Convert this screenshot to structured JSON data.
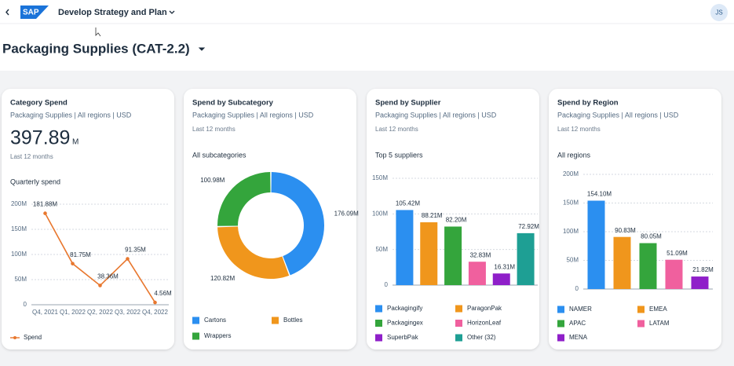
{
  "header": {
    "logo": "SAP",
    "app_title": "Develop Strategy and Plan",
    "user_initials": "JS"
  },
  "page_title": "Packaging Supplies (CAT-2.2)",
  "chart_data": [
    {
      "type": "line",
      "title": "Category Spend",
      "subtitle": "Packaging Supplies | All regions | USD",
      "kpi_value": 397.89,
      "kpi_unit": "M",
      "period": "Last 12 months",
      "chart_title": "Quarterly spend",
      "categories": [
        "Q4, 2021",
        "Q1, 2022",
        "Q2, 2022",
        "Q3, 2022",
        "Q4, 2022"
      ],
      "series": [
        {
          "name": "Spend",
          "color": "#e8772e",
          "values": [
            181.88,
            81.75,
            38.36,
            91.35,
            4.56
          ],
          "value_labels": [
            "181.88M",
            "81.75M",
            "38.36M",
            "91.35M",
            "4.56M"
          ]
        }
      ],
      "ylim": [
        0,
        200
      ],
      "yticks": [
        0,
        {
          "value": 50,
          "label": "50M"
        },
        {
          "value": 100,
          "label": "100M"
        },
        {
          "value": 150,
          "label": "150M"
        },
        {
          "value": 200,
          "label": "200M"
        }
      ],
      "grid": true
    },
    {
      "type": "donut",
      "title": "Spend by Subcategory",
      "subtitle": "Packaging Supplies | All regions | USD",
      "period": "Last 12 months",
      "chart_title": "All subcategories",
      "categories": [
        "Cartons",
        "Bottles",
        "Wrappers"
      ],
      "values": [
        176.09,
        120.82,
        100.98
      ],
      "value_labels": [
        "176.09M",
        "120.82M",
        "100.98M"
      ],
      "colors": [
        "#2b8ff0",
        "#f0961c",
        "#34a53c"
      ]
    },
    {
      "type": "bar",
      "title": "Spend by Supplier",
      "subtitle": "Packaging Supplies | All regions | USD",
      "period": "Last 12 months",
      "chart_title": "Top 5 suppliers",
      "categories": [
        "Packagingify",
        "ParagonPak",
        "Packagingex",
        "HorizonLeaf",
        "SuperbPak",
        "Other (32)"
      ],
      "values": [
        105.42,
        88.21,
        82.2,
        32.83,
        16.31,
        72.92
      ],
      "value_labels": [
        "105.42M",
        "88.21M",
        "82.20M",
        "32.83M",
        "16.31M",
        "72.92M"
      ],
      "colors": [
        "#2b8ff0",
        "#f0961c",
        "#34a53c",
        "#f0609e",
        "#8f1fc9",
        "#1e9f94"
      ],
      "ylim": [
        0,
        150
      ],
      "yticks": [
        0,
        {
          "value": 50,
          "label": "50M"
        },
        {
          "value": 100,
          "label": "100M"
        },
        {
          "value": 150,
          "label": "150M"
        }
      ],
      "grid": true
    },
    {
      "type": "bar",
      "title": "Spend by Region",
      "subtitle": "Packaging Supplies | All regions | USD",
      "period": "Last 12 months",
      "chart_title": "All regions",
      "categories": [
        "NAMER",
        "EMEA",
        "APAC",
        "LATAM",
        "MENA"
      ],
      "values": [
        154.1,
        90.83,
        80.05,
        51.09,
        21.82
      ],
      "value_labels": [
        "154.10M",
        "90.83M",
        "80.05M",
        "51.09M",
        "21.82M"
      ],
      "colors": [
        "#2b8ff0",
        "#f0961c",
        "#34a53c",
        "#f0609e",
        "#8f1fc9"
      ],
      "ylim": [
        0,
        200
      ],
      "yticks": [
        0,
        {
          "value": 50,
          "label": "50M"
        },
        {
          "value": 100,
          "label": "100M"
        },
        {
          "value": 150,
          "label": "150M"
        },
        {
          "value": 200,
          "label": "200M"
        }
      ],
      "grid": true
    }
  ]
}
